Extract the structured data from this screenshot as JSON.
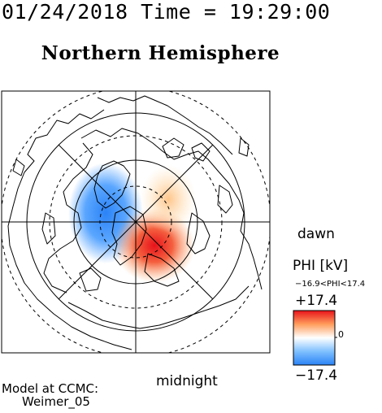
{
  "header": {
    "date_time": "01/24/2018 Time = 19:29:00"
  },
  "title": "Northern Hemisphere",
  "labels": {
    "dawn": "dawn",
    "midnight": "midnight"
  },
  "model": {
    "line1": "Model at CCMC:",
    "line2": "Weimer_05"
  },
  "colorbar": {
    "label": "PHI [kV]",
    "range_text": "−16.9<PHI<17.4",
    "max_label": "+17.4",
    "min_label": "−17.4",
    "zero_label": "0",
    "colors": [
      "#2b83f6",
      "#7fc0ff",
      "#ffffff",
      "#ff9d5c",
      "#e8121b"
    ]
  },
  "chart_data": {
    "type": "heatmap",
    "title": "Northern Hemisphere",
    "quantity": "PHI [kV]",
    "phi_min": -16.9,
    "phi_max": 17.4,
    "colorbar_range": [
      -17.4,
      17.4
    ],
    "cells": [
      {
        "name": "negative potential cell",
        "peak_kv": -16.9,
        "mlt_sector": "dusk",
        "color": "blue"
      },
      {
        "name": "positive potential cell",
        "peak_kv": 17.4,
        "mlt_sector": "dawn-midnight",
        "color": "red"
      }
    ],
    "orientation": {
      "right": "dawn",
      "bottom": "midnight"
    }
  }
}
